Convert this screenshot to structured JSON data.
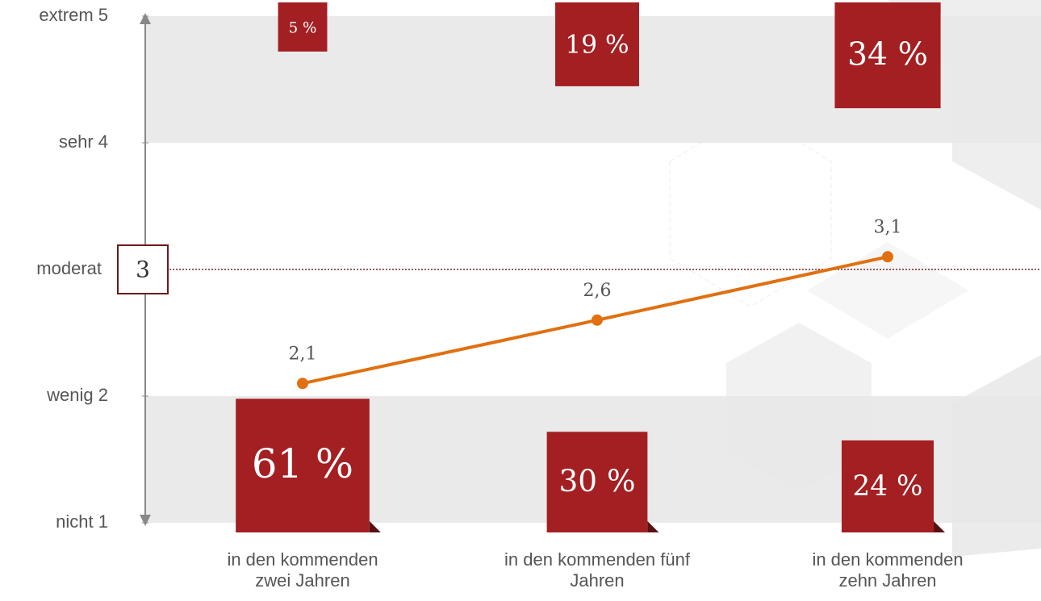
{
  "chart_data": {
    "type": "line",
    "categories": [
      "in den kommenden zwei Jahren",
      "in den kommenden fünf Jahren",
      "in den kommenden zehn Jahren"
    ],
    "ylim": [
      1,
      5
    ],
    "yticks": [
      {
        "value": 1,
        "label": "nicht 1"
      },
      {
        "value": 2,
        "label": "wenig 2"
      },
      {
        "value": 3,
        "label": "moderat"
      },
      {
        "value": 4,
        "label": "sehr 4"
      },
      {
        "value": 5,
        "label": "extrem 5"
      }
    ],
    "reference": 3,
    "series": [
      {
        "color": "#e07010",
        "values": [
          2.1,
          2.6,
          3.1
        ],
        "value_labels": [
          "2,1",
          "2,6",
          "3,1"
        ]
      }
    ],
    "top_boxes": {
      "color": "#a31f22",
      "values": [
        5,
        19,
        34
      ],
      "value_labels": [
        "5 %",
        "19 %",
        "34 %"
      ]
    },
    "bottom_boxes": {
      "color": "#a31f22",
      "values": [
        61,
        30,
        24
      ],
      "value_labels": [
        "61 %",
        "30 %",
        "24 %"
      ]
    }
  }
}
